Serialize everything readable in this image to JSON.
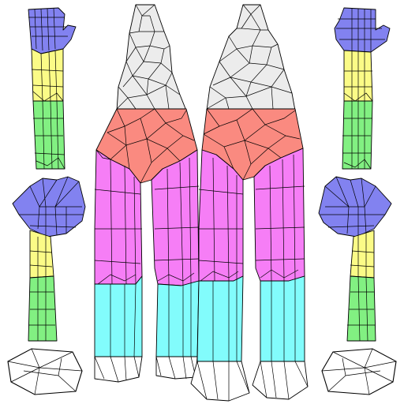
{
  "colors": {
    "background": "#ffffff",
    "head": "#ececec",
    "neck_chest": "#fa8a80",
    "torso_legs": "#f67ef6",
    "shins": "#82fcfc",
    "hands": "#8282f0",
    "upper_arm": "#fbfb87",
    "forearm": "#82f082",
    "outline": "#000000"
  },
  "regions": [
    {
      "part": "head",
      "color_key": "head"
    },
    {
      "part": "neck-chest",
      "color_key": "neck_chest"
    },
    {
      "part": "torso-legs",
      "color_key": "torso_legs"
    },
    {
      "part": "shins",
      "color_key": "shins"
    },
    {
      "part": "hands",
      "color_key": "hands"
    },
    {
      "part": "upper-arms",
      "color_key": "upper_arm"
    },
    {
      "part": "forearms",
      "color_key": "forearm"
    },
    {
      "part": "feet",
      "color_key": "background"
    }
  ]
}
